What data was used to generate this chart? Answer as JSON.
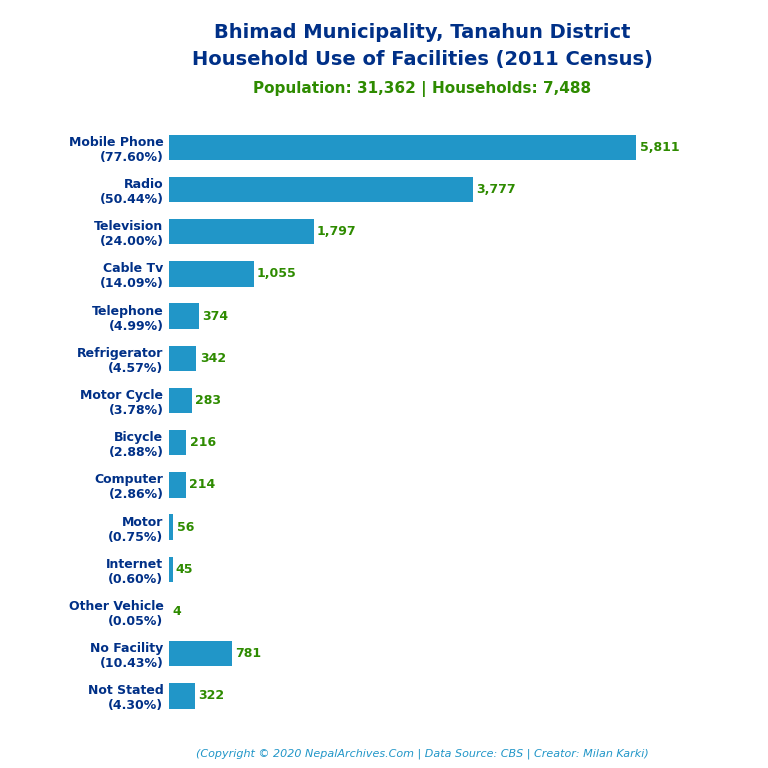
{
  "title_line1": "Bhimad Municipality, Tanahun District",
  "title_line2": "Household Use of Facilities (2011 Census)",
  "subtitle": "Population: 31,362 | Households: 7,488",
  "title_color": "#003087",
  "subtitle_color": "#2e8b00",
  "copyright": "(Copyright © 2020 NepalArchives.Com | Data Source: CBS | Creator: Milan Karki)",
  "categories": [
    "Mobile Phone\n(77.60%)",
    "Radio\n(50.44%)",
    "Television\n(24.00%)",
    "Cable Tv\n(14.09%)",
    "Telephone\n(4.99%)",
    "Refrigerator\n(4.57%)",
    "Motor Cycle\n(3.78%)",
    "Bicycle\n(2.88%)",
    "Computer\n(2.86%)",
    "Motor\n(0.75%)",
    "Internet\n(0.60%)",
    "Other Vehicle\n(0.05%)",
    "No Facility\n(10.43%)",
    "Not Stated\n(4.30%)"
  ],
  "values": [
    5811,
    3777,
    1797,
    1055,
    374,
    342,
    283,
    216,
    214,
    56,
    45,
    4,
    781,
    322
  ],
  "bar_color": "#2196c8",
  "value_color": "#2e8b00",
  "label_color": "#003087",
  "background_color": "#ffffff",
  "copyright_color": "#2196c8",
  "figsize": [
    7.68,
    7.68
  ],
  "dpi": 100
}
